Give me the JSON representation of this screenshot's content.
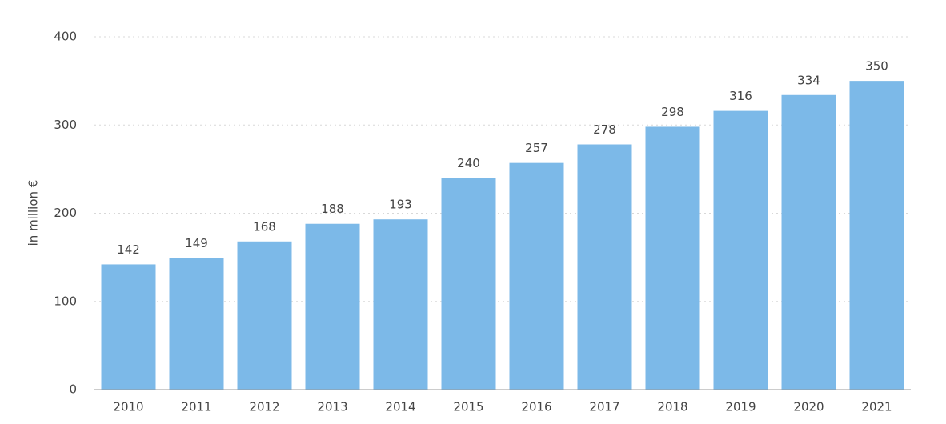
{
  "chart_data": {
    "type": "bar",
    "y_label": "in million €",
    "categories": [
      "2010",
      "2011",
      "2012",
      "2013",
      "2014",
      "2015",
      "2016",
      "2017",
      "2018",
      "2019",
      "2020",
      "2021"
    ],
    "values": [
      142,
      149,
      168,
      188,
      193,
      240,
      257,
      278,
      298,
      316,
      334,
      350
    ],
    "color": "#7cb9e8",
    "ylim": [
      0,
      400
    ],
    "yticks": [
      0,
      100,
      200,
      300,
      400
    ],
    "grid": true
  }
}
